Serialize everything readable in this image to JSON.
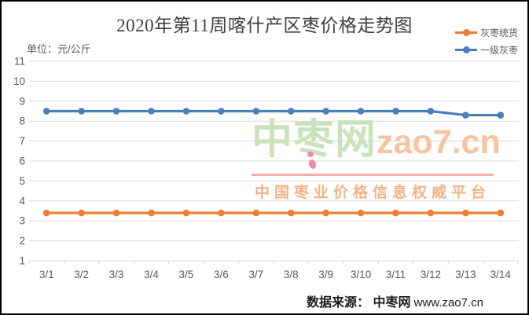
{
  "title": "2020年第11周喀什产区枣价格走势图",
  "unit_label": "单位：元/公斤",
  "legend": [
    {
      "label": "灰枣统货",
      "color": "#ED7D31"
    },
    {
      "label": "一级灰枣",
      "color": "#4A7EBD"
    }
  ],
  "watermark": {
    "brand_cn": "中枣网",
    "brand_en": "zao7.cn",
    "tagline": "中国枣业价格信息权威平台",
    "colors": {
      "brand_cn": "#C9E2BA",
      "brand_en": "#F6C4A0",
      "underline": "#F3B0A6",
      "tagline": "#F5B285",
      "dots": "#E8909F"
    }
  },
  "source": {
    "prefix": "数据来源：",
    "site": "中枣网",
    "url": " www.zao7.cn"
  },
  "chart_data": {
    "type": "line",
    "title": "2020年第11周喀什产区枣价格走势图",
    "ylabel": "元/公斤",
    "categories": [
      "3/1",
      "3/2",
      "3/3",
      "3/4",
      "3/5",
      "3/6",
      "3/7",
      "3/8",
      "3/9",
      "3/10",
      "3/11",
      "3/12",
      "3/13",
      "3/14"
    ],
    "series": [
      {
        "name": "灰枣统货",
        "color": "#ED7D31",
        "values": [
          3.4,
          3.4,
          3.4,
          3.4,
          3.4,
          3.4,
          3.4,
          3.4,
          3.4,
          3.4,
          3.4,
          3.4,
          3.4,
          3.4
        ]
      },
      {
        "name": "一级灰枣",
        "color": "#4A7EBD",
        "values": [
          8.5,
          8.5,
          8.5,
          8.5,
          8.5,
          8.5,
          8.5,
          8.5,
          8.5,
          8.5,
          8.5,
          8.5,
          8.3,
          8.3
        ]
      }
    ],
    "ylim": [
      1,
      11
    ],
    "ytick_step": 1,
    "grid": true,
    "grid_color": "#D9D9D9",
    "axis_text_color": "#595959",
    "legend_position": "top-right"
  }
}
